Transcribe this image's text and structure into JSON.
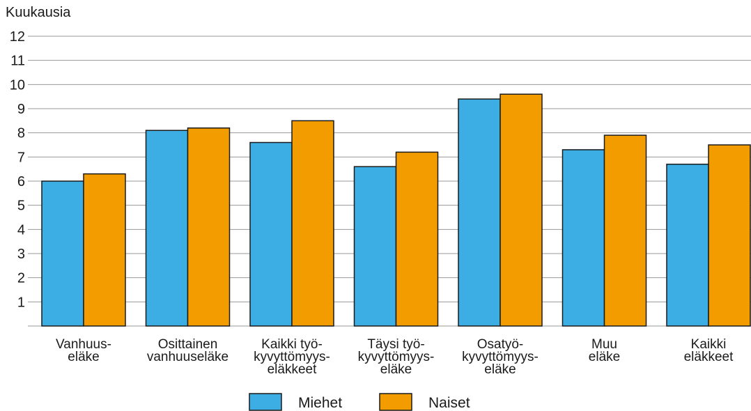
{
  "chart_data": {
    "type": "bar",
    "ylabel": "Kuukausia",
    "xlabel": "",
    "ylim": [
      0,
      12
    ],
    "yticks": [
      1,
      2,
      3,
      4,
      5,
      6,
      7,
      8,
      9,
      10,
      11,
      12
    ],
    "grid": true,
    "legend_position": "bottom",
    "categories": [
      [
        "Vanhuus-",
        "eläke"
      ],
      [
        "Osittainen",
        "vanhuuseläke"
      ],
      [
        "Kaikki työ-",
        "kyvyttömyys-",
        "eläkkeet"
      ],
      [
        "Täysi työ-",
        "kyvyttömyys-",
        "eläke"
      ],
      [
        "Osatyö-",
        "kyvyttömyys-",
        "eläke"
      ],
      [
        "Muu",
        "eläke"
      ],
      [
        "Kaikki",
        "eläkkeet"
      ]
    ],
    "series": [
      {
        "name": "Miehet",
        "color": "#3daee4",
        "values": [
          6.0,
          8.1,
          7.6,
          6.6,
          9.4,
          7.3,
          6.7
        ]
      },
      {
        "name": "Naiset",
        "color": "#f29c00",
        "values": [
          6.3,
          8.2,
          8.5,
          7.2,
          9.6,
          7.9,
          7.5
        ]
      }
    ]
  }
}
